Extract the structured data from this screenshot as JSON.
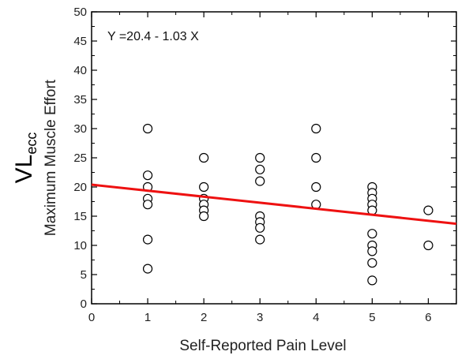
{
  "chart_data": {
    "type": "scatter",
    "xlabel": "Self-Reported Pain Level",
    "ylabel_main": "VL",
    "ylabel_sub": "ecc",
    "ylabel_secondary": "Maximum Muscle Effort",
    "xlim": [
      0,
      6.5
    ],
    "ylim": [
      0,
      50
    ],
    "x_ticks": [
      0,
      1,
      2,
      3,
      4,
      5,
      6
    ],
    "y_ticks": [
      0,
      5,
      10,
      15,
      20,
      25,
      30,
      35,
      40,
      45,
      50
    ],
    "annotation": "Y =20.4 - 1.03 X",
    "regression": {
      "intercept": 20.4,
      "slope": -1.03,
      "color": "#ee1111"
    },
    "marker": "open-circle",
    "points": [
      [
        1,
        30
      ],
      [
        1,
        22
      ],
      [
        1,
        20
      ],
      [
        1,
        18
      ],
      [
        1,
        17
      ],
      [
        1,
        11
      ],
      [
        1,
        6
      ],
      [
        2,
        25
      ],
      [
        2,
        20
      ],
      [
        2,
        18
      ],
      [
        2,
        17
      ],
      [
        2,
        16
      ],
      [
        2,
        15
      ],
      [
        3,
        25
      ],
      [
        3,
        23
      ],
      [
        3,
        21
      ],
      [
        3,
        15
      ],
      [
        3,
        14
      ],
      [
        3,
        13
      ],
      [
        3,
        11
      ],
      [
        4,
        30
      ],
      [
        4,
        25
      ],
      [
        4,
        20
      ],
      [
        4,
        17
      ],
      [
        5,
        20
      ],
      [
        5,
        19
      ],
      [
        5,
        18
      ],
      [
        5,
        17
      ],
      [
        5,
        16
      ],
      [
        5,
        12
      ],
      [
        5,
        10
      ],
      [
        5,
        9
      ],
      [
        5,
        7
      ],
      [
        5,
        4
      ],
      [
        6,
        16
      ],
      [
        6,
        10
      ]
    ],
    "grid": false,
    "legend": "none"
  }
}
